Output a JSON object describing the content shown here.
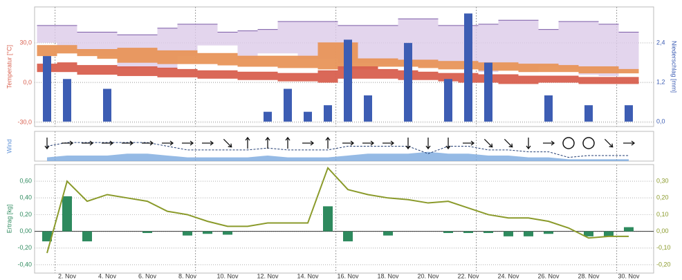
{
  "chart_data": [
    {
      "type": "band_bar",
      "ylabel": "Temperatur [°C]",
      "y2label": "Niederschlag [mm]",
      "ylim": [
        -33,
        57
      ],
      "yticks": [
        {
          "value": -30,
          "label": "-30,0"
        },
        {
          "value": 0,
          "label": "0,0"
        },
        {
          "value": 30,
          "label": "30,0"
        }
      ],
      "y2lim": [
        -0.15,
        3.5
      ],
      "y2ticks": [
        {
          "value": 0,
          "label": "0,0"
        },
        {
          "value": 1.2,
          "label": "1,2"
        },
        {
          "value": 2.4,
          "label": "2,4"
        }
      ],
      "grid": true,
      "bands": [
        {
          "color": "#dccbe9",
          "edge": "#7a5aa6",
          "high": [
            43,
            43,
            38,
            38,
            36,
            36,
            41,
            44,
            44,
            38,
            39,
            40,
            46,
            46,
            46,
            43,
            43,
            43,
            48,
            48,
            43,
            43,
            44,
            47,
            47,
            40,
            46,
            46,
            44,
            38
          ],
          "low": [
            30,
            28,
            22,
            20,
            10,
            12,
            10,
            20,
            28,
            28,
            18,
            22,
            22,
            18,
            18,
            15,
            15,
            14,
            12,
            12,
            15,
            15,
            8,
            10,
            8,
            12,
            10,
            6,
            5,
            10
          ]
        },
        {
          "color": "#e8955a",
          "edge": "#e8955a",
          "high": [
            28,
            28,
            25,
            25,
            26,
            26,
            24,
            24,
            22,
            22,
            20,
            20,
            20,
            20,
            30,
            30,
            18,
            18,
            17,
            17,
            16,
            16,
            15,
            15,
            14,
            14,
            13,
            12,
            12,
            10
          ],
          "low": [
            20,
            22,
            20,
            18,
            15,
            15,
            14,
            14,
            14,
            13,
            12,
            12,
            11,
            11,
            10,
            10,
            10,
            12,
            12,
            11,
            10,
            10,
            9,
            9,
            8,
            8,
            8,
            7,
            7,
            7
          ]
        },
        {
          "color": "#d8604f",
          "edge": "#d8604f",
          "high": [
            14,
            15,
            13,
            13,
            12,
            12,
            11,
            10,
            9,
            9,
            8,
            8,
            7,
            7,
            9,
            12,
            12,
            10,
            9,
            8,
            7,
            7,
            6,
            6,
            5,
            5,
            5,
            4,
            4,
            4
          ],
          "low": [
            8,
            8,
            6,
            6,
            5,
            5,
            4,
            4,
            3,
            3,
            2,
            2,
            1,
            1,
            0,
            3,
            3,
            3,
            2,
            2,
            1,
            0,
            0,
            -1,
            -1,
            0,
            0,
            -1,
            -1,
            -1
          ]
        }
      ],
      "series": [
        {
          "color": "#3d5db3",
          "axis": "y2",
          "values": [
            2.0,
            1.3,
            0,
            1.0,
            0,
            0,
            0,
            0,
            0,
            0,
            0,
            0.3,
            1.0,
            0.3,
            0.5,
            2.5,
            0.8,
            0,
            2.4,
            0,
            1.3,
            3.3,
            1.8,
            0,
            0,
            0.8,
            0,
            0.5,
            0,
            0.5
          ]
        }
      ]
    },
    {
      "type": "wind",
      "ylabel": "Wind",
      "ylim": [
        0,
        8
      ],
      "speed": [
        1,
        1.5,
        1.5,
        1.5,
        2,
        2,
        1.5,
        1,
        1,
        1,
        1,
        1.5,
        1,
        1,
        1,
        1.5,
        2,
        2,
        2,
        2.5,
        2,
        2,
        1.5,
        1.5,
        1,
        1,
        0.5,
        0.5,
        0.5,
        0.5
      ],
      "gust": [
        4,
        5,
        5,
        5,
        5,
        5,
        4,
        3,
        3,
        3,
        3,
        3.5,
        3,
        3,
        3,
        4,
        4,
        4,
        4,
        2,
        4,
        4,
        3,
        3,
        2.5,
        2.5,
        1,
        1.5,
        1.5,
        1.5
      ],
      "direction": [
        90,
        0,
        0,
        0,
        0,
        0,
        0,
        0,
        0,
        45,
        -90,
        -90,
        -90,
        0,
        -90,
        0,
        0,
        0,
        90,
        90,
        90,
        0,
        45,
        45,
        90,
        0,
        null,
        null,
        45,
        0
      ],
      "color": "#7aa9df",
      "gust_color": "#1f3a70"
    },
    {
      "type": "bar_line",
      "ylabel": "Ertrag [kg]",
      "categories": [
        null,
        "2. Nov",
        null,
        "4. Nov",
        null,
        "6. Nov",
        null,
        "8. Nov",
        null,
        "10. Nov",
        null,
        "12. Nov",
        null,
        "14. Nov",
        null,
        "16. Nov",
        null,
        "18. Nov",
        null,
        "20. Nov",
        null,
        "22. Nov",
        null,
        "24. Nov",
        null,
        "26. Nov",
        null,
        "28. Nov",
        null,
        "30. Nov"
      ],
      "ylim": [
        -0.5,
        0.8
      ],
      "yticks": [
        {
          "value": -0.4,
          "label": "-0,40"
        },
        {
          "value": -0.2,
          "label": "-0,20"
        },
        {
          "value": 0,
          "label": "0,00"
        },
        {
          "value": 0.2,
          "label": "0,20"
        },
        {
          "value": 0.4,
          "label": "0,40"
        },
        {
          "value": 0.6,
          "label": "0,60"
        }
      ],
      "y2lim": [
        -0.25,
        0.4
      ],
      "y2ticks": [
        {
          "value": -0.2,
          "label": "-0,20"
        },
        {
          "value": -0.1,
          "label": "-0,10"
        },
        {
          "value": 0,
          "label": "0,00"
        },
        {
          "value": 0.1,
          "label": "0,10"
        },
        {
          "value": 0.2,
          "label": "0,20"
        },
        {
          "value": 0.3,
          "label": "0,30"
        }
      ],
      "grid": true,
      "series": [
        {
          "color": "#2e8a5e",
          "values": [
            -0.12,
            0.42,
            -0.12,
            0,
            0,
            -0.02,
            0,
            -0.05,
            -0.03,
            -0.04,
            0,
            0,
            0,
            0,
            0.3,
            -0.12,
            0,
            -0.05,
            0,
            0,
            -0.02,
            -0.02,
            -0.02,
            -0.06,
            -0.06,
            -0.03,
            0,
            -0.06,
            -0.06,
            0.05
          ]
        },
        {
          "color": "#8a9a2a",
          "axis": "y2",
          "values": [
            -0.13,
            0.3,
            0.18,
            0.22,
            0.2,
            0.18,
            0.12,
            0.1,
            0.06,
            0.03,
            0.03,
            0.05,
            0.05,
            0.05,
            0.38,
            0.25,
            0.22,
            0.2,
            0.19,
            0.17,
            0.18,
            0.14,
            0.1,
            0.08,
            0.08,
            0.06,
            0.02,
            -0.04,
            -0.03,
            -0.03
          ]
        }
      ]
    }
  ]
}
